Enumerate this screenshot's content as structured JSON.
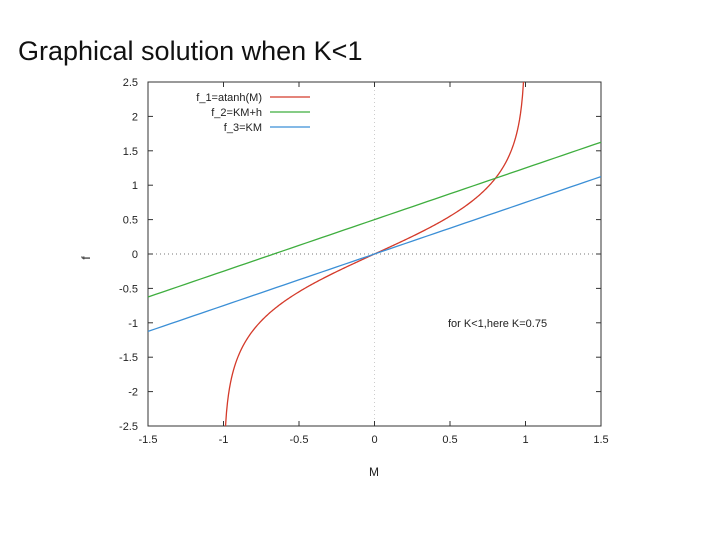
{
  "title": "Graphical solution when K<1",
  "chart_data": {
    "type": "line",
    "xlabel": "M",
    "ylabel": "f",
    "xlim": [
      -1.5,
      1.5
    ],
    "ylim": [
      -2.5,
      2.5
    ],
    "xticks": [
      "-1.5",
      "-1",
      "-0.5",
      "0",
      "0.5",
      "1",
      "1.5"
    ],
    "yticks": [
      "2.5",
      "2",
      "1.5",
      "1",
      "0.5",
      "0",
      "-0.5",
      "-1",
      "-1.5",
      "-2",
      "-2.5"
    ],
    "K": 0.75,
    "h": 0.5,
    "annotation": "for K<1,here K=0.75",
    "legend_position": "top-left",
    "series": [
      {
        "name": "f_1=atanh(M)",
        "color": "#d43a2a",
        "function": "atanh"
      },
      {
        "name": "f_2=KM+h",
        "color": "#3fae3f",
        "function": "KM+h"
      },
      {
        "name": "f_3=KM",
        "color": "#3b8fd6",
        "function": "KM"
      }
    ],
    "grid_zero_lines": true
  }
}
